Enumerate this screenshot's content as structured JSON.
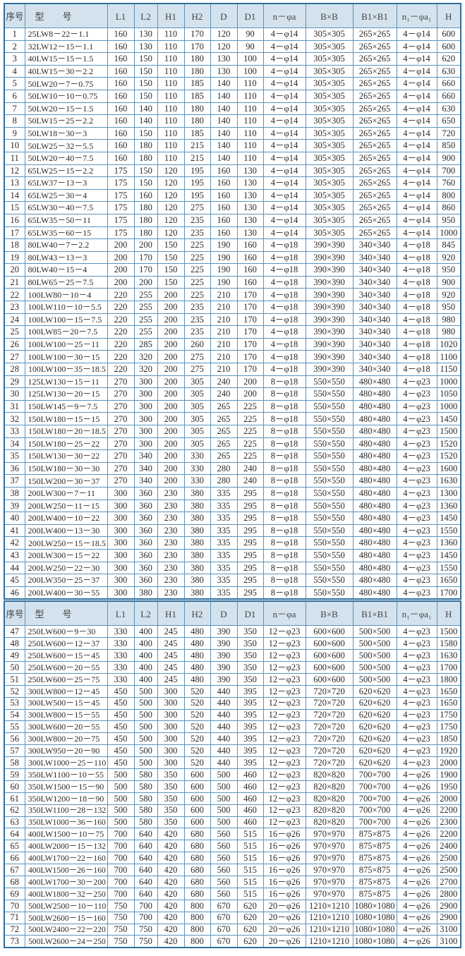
{
  "colors": {
    "border": "#2f6f9e",
    "header_bg": "#d3e2ec"
  },
  "headers": [
    "序号",
    "型　　号",
    "L1",
    "L2",
    "H1",
    "H2",
    "D",
    "D1",
    "n－φa",
    "B×B",
    "B1×B1",
    "n₁－φa₁",
    "H"
  ],
  "rows": [
    [
      "1",
      "25LW8－22－1.1",
      "160",
      "130",
      "110",
      "170",
      "120",
      "90",
      "4－φ14",
      "305×305",
      "265×265",
      "4－φ14",
      "600"
    ],
    [
      "2",
      "32LW12－15－1.1",
      "160",
      "130",
      "110",
      "170",
      "120",
      "90",
      "4－φ14",
      "305×305",
      "265×265",
      "4－φ14",
      "600"
    ],
    [
      "3",
      "40LW15－15－1.5",
      "160",
      "150",
      "110",
      "180",
      "130",
      "100",
      "4－φ14",
      "305×305",
      "265×265",
      "4－φ14",
      "620"
    ],
    [
      "4",
      "40LW15－30－2.2",
      "160",
      "150",
      "110",
      "180",
      "130",
      "100",
      "4－φ14",
      "305×305",
      "265×265",
      "4－φ14",
      "630"
    ],
    [
      "5",
      "50LW20－7－0.75",
      "160",
      "150",
      "110",
      "185",
      "140",
      "110",
      "4－φ14",
      "305×305",
      "265×265",
      "4－φ14",
      "660"
    ],
    [
      "6",
      "50LW10－10－0.75",
      "160",
      "150",
      "110",
      "185",
      "140",
      "110",
      "4－φ14",
      "305×305",
      "265×265",
      "4－φ14",
      "660"
    ],
    [
      "7",
      "50LW20－15－1.5",
      "160",
      "140",
      "110",
      "180",
      "140",
      "110",
      "4－φ14",
      "305×305",
      "265×265",
      "4－φ14",
      "630"
    ],
    [
      "8",
      "50LW15－25－2.2",
      "160",
      "140",
      "110",
      "180",
      "140",
      "110",
      "4－φ14",
      "305×305",
      "265×265",
      "4－φ14",
      "650"
    ],
    [
      "9",
      "50LW18－30－3",
      "160",
      "150",
      "110",
      "185",
      "140",
      "110",
      "4－φ14",
      "305×305",
      "265×265",
      "4－φ14",
      "720"
    ],
    [
      "10",
      "50LW25－32－5.5",
      "160",
      "180",
      "110",
      "215",
      "140",
      "110",
      "4－φ14",
      "305×305",
      "265×265",
      "4－φ14",
      "850"
    ],
    [
      "11",
      "50LW20－40－7.5",
      "160",
      "180",
      "110",
      "215",
      "140",
      "110",
      "4－φ14",
      "305×305",
      "265×265",
      "4－φ14",
      "900"
    ],
    [
      "12",
      "65LW25－15－2.2",
      "175",
      "150",
      "120",
      "195",
      "160",
      "130",
      "4－φ14",
      "305×305",
      "265×265",
      "4－φ14",
      "700"
    ],
    [
      "13",
      "65LW37－13－3",
      "175",
      "150",
      "120",
      "195",
      "160",
      "130",
      "4－φ14",
      "305×305",
      "265×265",
      "4－φ14",
      "760"
    ],
    [
      "14",
      "65LW25－30－4",
      "175",
      "160",
      "120",
      "195",
      "160",
      "130",
      "4－φ14",
      "305×305",
      "265×265",
      "4－φ14",
      "800"
    ],
    [
      "15",
      "65LW30－40－7.5",
      "175",
      "180",
      "120",
      "275",
      "160",
      "130",
      "4－φ14",
      "305×305",
      "265×265",
      "4－φ14",
      "860"
    ],
    [
      "16",
      "65LW35－50－11",
      "175",
      "180",
      "120",
      "235",
      "160",
      "130",
      "4－φ14",
      "305×305",
      "265×265",
      "4－φ14",
      "950"
    ],
    [
      "17",
      "65LW35－60－15",
      "175",
      "180",
      "120",
      "235",
      "160",
      "130",
      "4－φ14",
      "305×305",
      "265×265",
      "4－φ14",
      "1000"
    ],
    [
      "18",
      "80LW40－7－2.2",
      "200",
      "200",
      "150",
      "225",
      "190",
      "160",
      "4－φ18",
      "390×390",
      "340×340",
      "4－φ18",
      "845"
    ],
    [
      "19",
      "80LW43－13－3",
      "200",
      "170",
      "150",
      "225",
      "190",
      "160",
      "4－φ18",
      "390×390",
      "340×340",
      "4－φ18",
      "920"
    ],
    [
      "20",
      "80LW40－15－4",
      "200",
      "170",
      "150",
      "225",
      "190",
      "160",
      "4－φ18",
      "390×390",
      "340×340",
      "4－φ18",
      "950"
    ],
    [
      "21",
      "80LW65－25－7.5",
      "200",
      "200",
      "150",
      "225",
      "190",
      "160",
      "4－φ18",
      "390×390",
      "340×340",
      "4－φ18",
      "900"
    ],
    [
      "22",
      "100LW80－10－4",
      "220",
      "255",
      "200",
      "225",
      "210",
      "170",
      "4－φ18",
      "390×390",
      "340×340",
      "4－φ18",
      "920"
    ],
    [
      "23",
      "100LW110－10－5.5",
      "220",
      "255",
      "200",
      "235",
      "210",
      "170",
      "4－φ18",
      "390×390",
      "340×340",
      "4－φ18",
      "950"
    ],
    [
      "24",
      "100LW100－15－7.5",
      "220",
      "255",
      "200",
      "235",
      "210",
      "170",
      "4－φ18",
      "390×390",
      "340×340",
      "4－φ18",
      "980"
    ],
    [
      "25",
      "100LW85－20－7.5",
      "220",
      "255",
      "200",
      "235",
      "210",
      "170",
      "4－φ18",
      "390×390",
      "340×340",
      "4－φ18",
      "980"
    ],
    [
      "26",
      "100LW100－25－11",
      "220",
      "285",
      "200",
      "260",
      "210",
      "170",
      "4－φ18",
      "390×390",
      "340×340",
      "4－φ18",
      "1020"
    ],
    [
      "27",
      "100LW100－30－15",
      "220",
      "320",
      "200",
      "275",
      "210",
      "170",
      "4－φ18",
      "390×390",
      "340×340",
      "4－φ18",
      "1100"
    ],
    [
      "28",
      "100LW100－35－18.5",
      "220",
      "320",
      "200",
      "275",
      "210",
      "170",
      "4－φ18",
      "390×390",
      "340×340",
      "4－φ18",
      "1150"
    ],
    [
      "29",
      "125LW130－15－11",
      "270",
      "300",
      "200",
      "305",
      "240",
      "200",
      "8－φ18",
      "550×550",
      "480×480",
      "4－φ23",
      "1000"
    ],
    [
      "30",
      "125LW130－20－15",
      "270",
      "300",
      "200",
      "305",
      "240",
      "200",
      "8－φ18",
      "550×550",
      "480×480",
      "4－φ23",
      "1050"
    ],
    [
      "31",
      "150LW145－9－7.5",
      "270",
      "300",
      "200",
      "305",
      "265",
      "225",
      "8－φ18",
      "550×550",
      "480×480",
      "4－φ23",
      "1000"
    ],
    [
      "32",
      "150LW180－15－15",
      "270",
      "300",
      "200",
      "305",
      "265",
      "225",
      "8－φ18",
      "550×550",
      "480×480",
      "4－φ23",
      "1450"
    ],
    [
      "33",
      "150LW180－20－18.5",
      "270",
      "300",
      "200",
      "305",
      "265",
      "225",
      "8－φ18",
      "550×550",
      "480×480",
      "4－φ23",
      "1500"
    ],
    [
      "34",
      "150LW180－25－22",
      "270",
      "300",
      "200",
      "305",
      "265",
      "225",
      "8－φ18",
      "550×550",
      "480×480",
      "4－φ23",
      "1520"
    ],
    [
      "35",
      "150LW130－30－22",
      "270",
      "340",
      "200",
      "330",
      "265",
      "225",
      "8－φ18",
      "550×550",
      "480×480",
      "4－φ23",
      "1520"
    ],
    [
      "36",
      "150LW180－30－30",
      "270",
      "340",
      "200",
      "330",
      "280",
      "240",
      "8－φ18",
      "550×550",
      "480×480",
      "4－φ23",
      "1600"
    ],
    [
      "37",
      "150LW200－30－37",
      "270",
      "340",
      "200",
      "330",
      "280",
      "240",
      "8－φ18",
      "550×550",
      "480×480",
      "4－φ23",
      "1630"
    ],
    [
      "38",
      "200LW300－7－11",
      "300",
      "360",
      "230",
      "380",
      "335",
      "295",
      "8－φ18",
      "550×550",
      "480×480",
      "4－φ23",
      "1300"
    ],
    [
      "39",
      "200LW250－11－15",
      "300",
      "360",
      "230",
      "380",
      "335",
      "295",
      "8－φ18",
      "550×550",
      "480×480",
      "4－φ23",
      "1360"
    ],
    [
      "40",
      "200LW400－10－22",
      "300",
      "360",
      "230",
      "380",
      "335",
      "295",
      "8－φ18",
      "550×550",
      "480×480",
      "4－φ23",
      "1450"
    ],
    [
      "41",
      "200LW400－13－30",
      "300",
      "360",
      "230",
      "380",
      "335",
      "295",
      "8－φ18",
      "550×550",
      "480×480",
      "4－φ23",
      "1550"
    ],
    [
      "42",
      "200LW250－15－18.5",
      "300",
      "360",
      "230",
      "380",
      "335",
      "295",
      "8－φ18",
      "550×550",
      "480×480",
      "4－φ23",
      "1360"
    ],
    [
      "43",
      "200LW300－15－22",
      "300",
      "360",
      "230",
      "380",
      "335",
      "295",
      "8－φ18",
      "550×550",
      "480×480",
      "4－φ23",
      "1450"
    ],
    [
      "44",
      "200LW250－22－30",
      "300",
      "360",
      "230",
      "380",
      "335",
      "295",
      "8－φ18",
      "550×550",
      "480×480",
      "4－φ23",
      "1550"
    ],
    [
      "45",
      "200LW350－25－37",
      "300",
      "360",
      "230",
      "380",
      "335",
      "295",
      "8－φ18",
      "550×550",
      "480×480",
      "4－φ23",
      "1650"
    ],
    [
      "46",
      "200LW400－30－55",
      "300",
      "380",
      "230",
      "380",
      "335",
      "295",
      "8－φ18",
      "550×550",
      "480×480",
      "4－φ23",
      "1700"
    ],
    [
      "47",
      "250LW600－9－30",
      "330",
      "400",
      "245",
      "480",
      "390",
      "350",
      "12－φ23",
      "600×600",
      "500×500",
      "4－φ23",
      "1500"
    ],
    [
      "48",
      "250LW600－12－37",
      "330",
      "400",
      "245",
      "480",
      "390",
      "350",
      "12－φ23",
      "600×600",
      "500×500",
      "4－φ23",
      "1580"
    ],
    [
      "49",
      "250LW600－15－45",
      "330",
      "400",
      "245",
      "480",
      "390",
      "350",
      "12－φ23",
      "600×600",
      "500×500",
      "4－φ23",
      "1630"
    ],
    [
      "50",
      "250LW600－20－55",
      "330",
      "400",
      "245",
      "480",
      "390",
      "350",
      "12－φ23",
      "600×600",
      "500×500",
      "4－φ23",
      "1700"
    ],
    [
      "51",
      "250LW600－25－75",
      "330",
      "400",
      "245",
      "480",
      "390",
      "350",
      "12－φ23",
      "600×600",
      "500×500",
      "4－φ23",
      "1800"
    ],
    [
      "52",
      "300LW800－12－45",
      "450",
      "500",
      "300",
      "520",
      "440",
      "395",
      "12－φ23",
      "720×720",
      "620×620",
      "4－φ23",
      "1650"
    ],
    [
      "53",
      "300LW500－15－45",
      "450",
      "500",
      "300",
      "520",
      "440",
      "395",
      "12－φ23",
      "720×720",
      "620×620",
      "4－φ23",
      "1650"
    ],
    [
      "54",
      "300LW800－15－55",
      "450",
      "500",
      "300",
      "520",
      "440",
      "395",
      "12－φ23",
      "720×720",
      "620×620",
      "4－φ23",
      "1750"
    ],
    [
      "55",
      "300LW600－20－55",
      "450",
      "500",
      "300",
      "520",
      "440",
      "395",
      "12－φ23",
      "720×720",
      "620×620",
      "4－φ23",
      "1750"
    ],
    [
      "56",
      "300LW800－20－75",
      "450",
      "500",
      "300",
      "520",
      "440",
      "395",
      "12－φ23",
      "720×720",
      "620×620",
      "4－φ23",
      "1850"
    ],
    [
      "57",
      "300LW950－20－90",
      "450",
      "500",
      "300",
      "520",
      "440",
      "395",
      "12－φ23",
      "720×720",
      "620×620",
      "4－φ23",
      "1920"
    ],
    [
      "58",
      "300LW1000－25－110",
      "450",
      "500",
      "300",
      "520",
      "440",
      "395",
      "12－φ23",
      "720×720",
      "620×620",
      "4－φ23",
      "2000"
    ],
    [
      "59",
      "350LW1100－10－55",
      "500",
      "580",
      "350",
      "600",
      "500",
      "460",
      "12－φ23",
      "820×820",
      "700×700",
      "4－φ26",
      "1900"
    ],
    [
      "60",
      "350LW1500－15－90",
      "500",
      "580",
      "350",
      "600",
      "500",
      "460",
      "12－φ23",
      "820×820",
      "700×700",
      "4－φ26",
      "1950"
    ],
    [
      "61",
      "350LW1200－18－90",
      "500",
      "580",
      "350",
      "600",
      "500",
      "460",
      "12－φ23",
      "820×820",
      "700×700",
      "4－φ26",
      "2000"
    ],
    [
      "62",
      "350LW1100－28－132",
      "500",
      "580",
      "350",
      "600",
      "500",
      "460",
      "12－φ23",
      "820×820",
      "700×700",
      "4－φ26",
      "2200"
    ],
    [
      "63",
      "350LW1000－36－160",
      "500",
      "580",
      "350",
      "600",
      "500",
      "460",
      "12－φ23",
      "820×820",
      "700×700",
      "4－φ26",
      "2300"
    ],
    [
      "64",
      "400LW1500－10－75",
      "700",
      "640",
      "420",
      "680",
      "560",
      "515",
      "16－φ26",
      "970×970",
      "875×875",
      "4－φ26",
      "2200"
    ],
    [
      "65",
      "400LW2000－15－132",
      "700",
      "640",
      "420",
      "680",
      "560",
      "515",
      "16－φ26",
      "970×970",
      "875×875",
      "4－φ26",
      "2400"
    ],
    [
      "66",
      "400LW1700－22－160",
      "700",
      "640",
      "420",
      "680",
      "560",
      "515",
      "16－φ26",
      "970×970",
      "875×875",
      "4－φ26",
      "2500"
    ],
    [
      "67",
      "400LW1500－26－160",
      "700",
      "640",
      "420",
      "680",
      "560",
      "515",
      "16－φ26",
      "970×970",
      "875×875",
      "4－φ26",
      "2500"
    ],
    [
      "68",
      "400LW1700－30－200",
      "700",
      "640",
      "420",
      "680",
      "560",
      "515",
      "16－φ26",
      "970×970",
      "875×875",
      "4－φ26",
      "2700"
    ],
    [
      "69",
      "400LW1800－32－250",
      "700",
      "640",
      "420",
      "680",
      "560",
      "515",
      "16－φ26",
      "970×970",
      "875×875",
      "4－φ26",
      "2800"
    ],
    [
      "70",
      "500LW2500－10－110",
      "750",
      "700",
      "420",
      "800",
      "670",
      "620",
      "20－φ26",
      "1210×1210",
      "1080×1080",
      "4－φ26",
      "2900"
    ],
    [
      "71",
      "500LW2600－15－160",
      "750",
      "700",
      "420",
      "800",
      "670",
      "620",
      "20－φ26",
      "1210×1210",
      "1080×1080",
      "4－φ26",
      "2900"
    ],
    [
      "72",
      "500LW2400－22－220",
      "750",
      "750",
      "420",
      "800",
      "670",
      "620",
      "20－φ26",
      "1210×1210",
      "1080×1080",
      "4－φ26",
      "3100"
    ],
    [
      "73",
      "500LW2600－24－250",
      "750",
      "750",
      "420",
      "800",
      "670",
      "620",
      "20－φ26",
      "1210×1210",
      "1080×1080",
      "4－φ26",
      "3100"
    ]
  ]
}
